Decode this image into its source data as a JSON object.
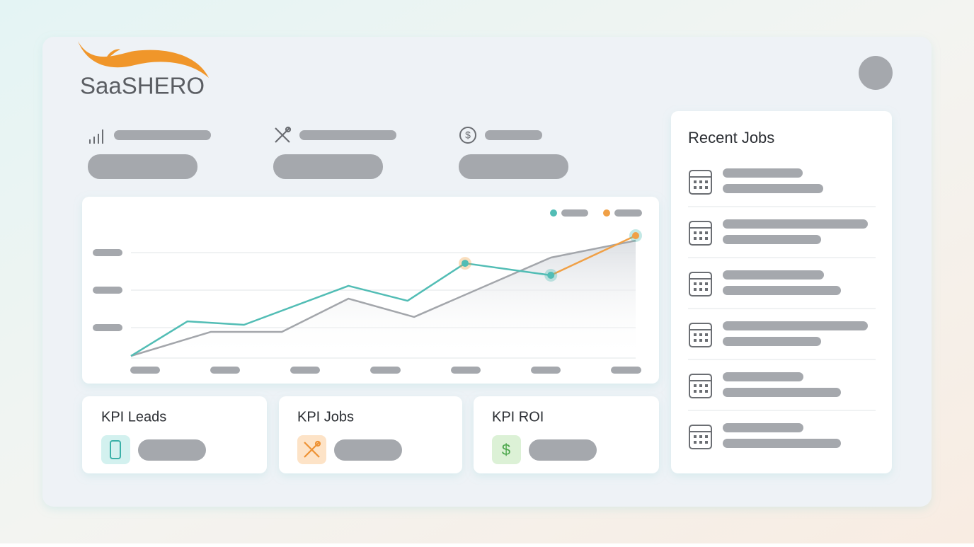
{
  "header": {
    "logo": "SaaSHERO"
  },
  "chart": {
    "type": "line",
    "xlim": [
      0,
      100
    ],
    "ylim": [
      0,
      100
    ],
    "series": [
      {
        "color": "#a3a6ab",
        "x": [
          0,
          15.8,
          29.9,
          43.1,
          56.1,
          83.2,
          100
        ],
        "values": [
          1.7,
          21,
          21,
          47.7,
          33,
          80.7,
          94.3
        ]
      },
      {
        "color": "#52bdb5",
        "x": [
          0,
          11.2,
          22.4,
          43.1,
          54.8,
          66.2,
          83.2
        ],
        "values": [
          1.7,
          29.5,
          26.7,
          58,
          46,
          76.1,
          66.5
        ]
      },
      {
        "color": "#f0a046",
        "x": [
          83.2,
          100
        ],
        "values": [
          66.5,
          98.3
        ]
      }
    ]
  },
  "kpis": [
    {
      "label": "KPI Leads"
    },
    {
      "label": "KPI Jobs"
    },
    {
      "label": "KPI ROI"
    }
  ],
  "recent_jobs": {
    "title": "Recent Jobs"
  }
}
